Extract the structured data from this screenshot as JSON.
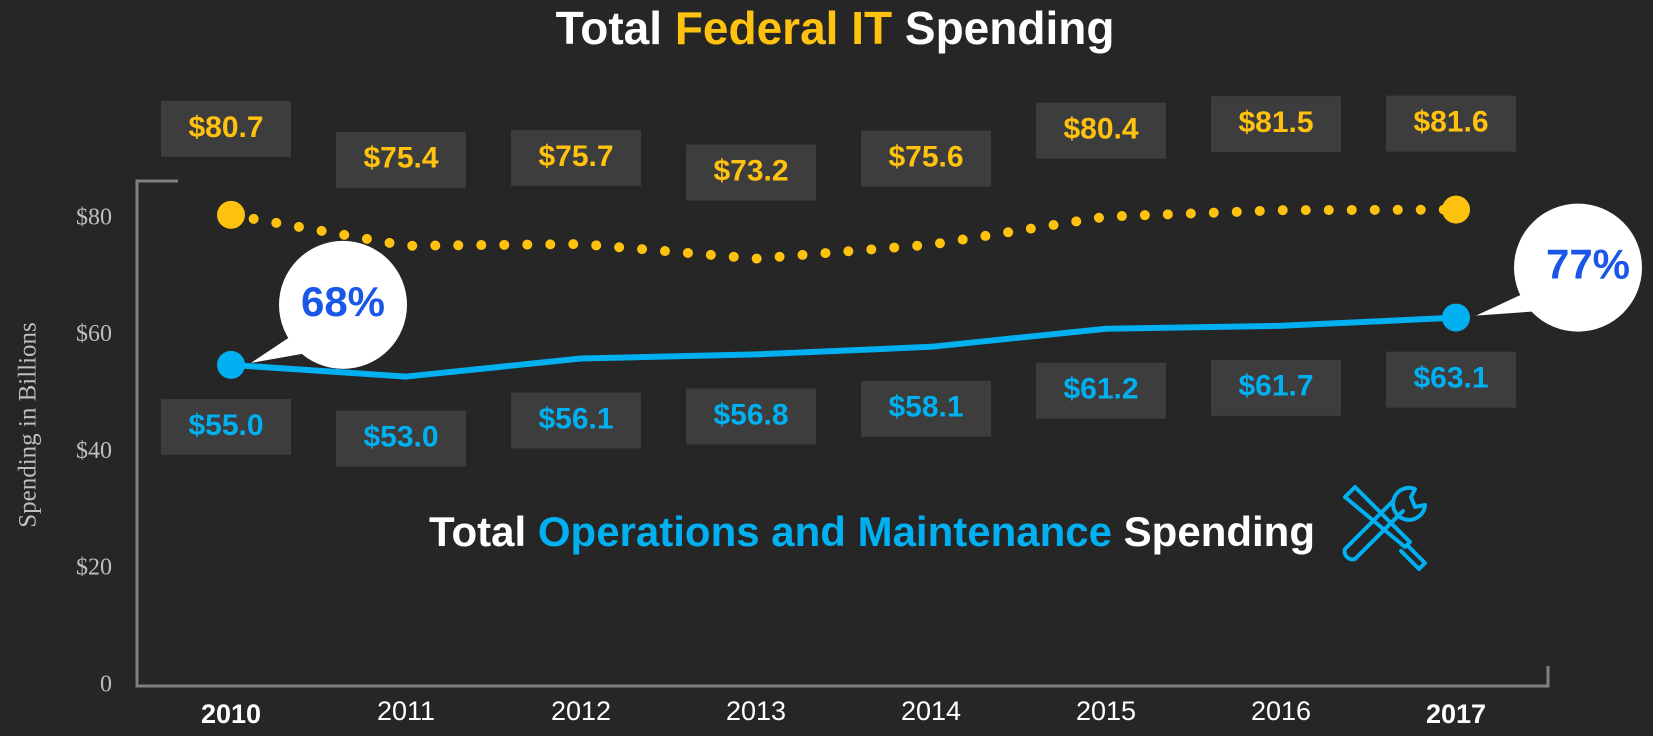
{
  "chart_data": {
    "type": "line",
    "title": {
      "before": "Total",
      "after": "Spending"
    },
    "caption": {
      "before": "Total",
      "after": "Spending"
    },
    "ylabel": "Spending in Billions",
    "categories": [
      "2010",
      "2011",
      "2012",
      "2013",
      "2014",
      "2015",
      "2016",
      "2017"
    ],
    "series": [
      {
        "name": "Federal IT",
        "color": "#ffc20e",
        "style": "dotted",
        "values": [
          80.7,
          75.4,
          75.7,
          73.2,
          75.6,
          80.4,
          81.5,
          81.6
        ],
        "value_labels": [
          "$80.7",
          "$75.4",
          "$75.7",
          "$73.2",
          "$75.6",
          "$80.4",
          "$81.5",
          "$81.6"
        ]
      },
      {
        "name": "Operations and Maintenance",
        "color": "#00b0f0",
        "style": "solid",
        "values": [
          55.0,
          53.0,
          56.1,
          56.8,
          58.1,
          61.2,
          61.7,
          63.1
        ],
        "value_labels": [
          "$55.0",
          "$53.0",
          "$56.1",
          "$56.8",
          "$58.1",
          "$61.2",
          "$61.7",
          "$63.1"
        ]
      }
    ],
    "annotations": [
      "68%",
      "77%"
    ],
    "ylim": [
      0,
      86.5
    ],
    "yticks": [
      0,
      {
        "value": 20,
        "label": "$20"
      },
      {
        "value": 40,
        "label": "$40"
      },
      {
        "value": 60,
        "label": "$60"
      },
      {
        "value": 80,
        "label": "$80"
      }
    ],
    "grid": false
  }
}
